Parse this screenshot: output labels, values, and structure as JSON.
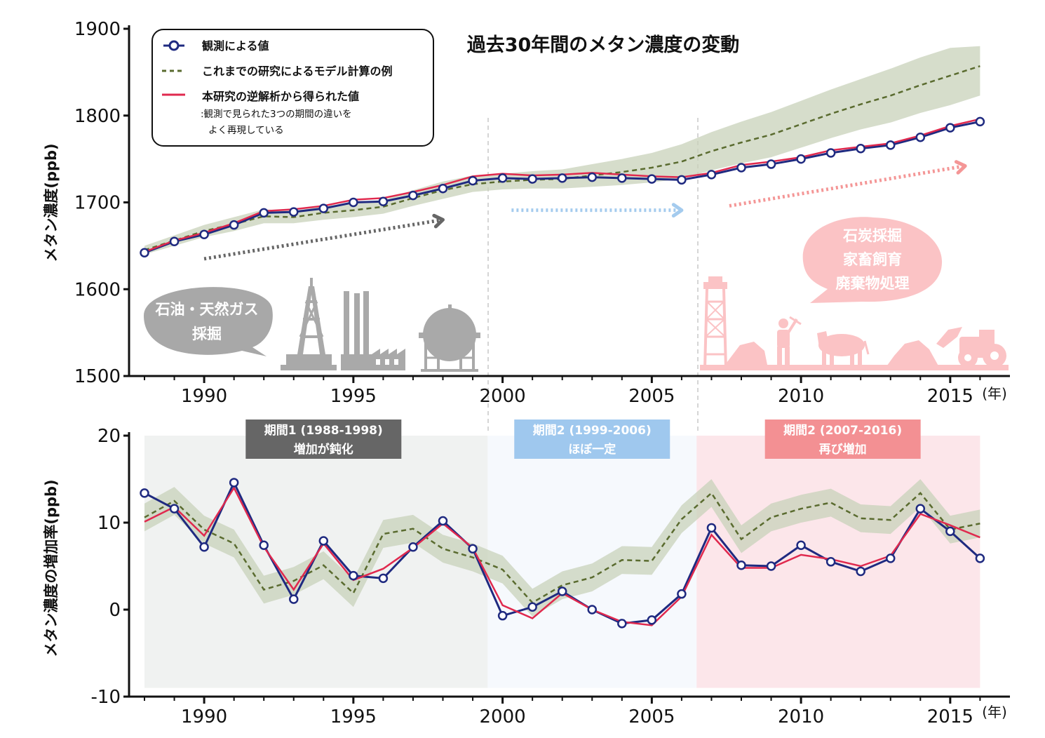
{
  "chart_data": [
    {
      "type": "line",
      "title": "過去30年間のメタン濃度の変動",
      "ylabel": "メタン濃度(ppb)",
      "xlabel": "(年)",
      "xlim": [
        1988,
        2016
      ],
      "ylim": [
        1500,
        1900
      ],
      "yticks": [
        1500,
        1600,
        1700,
        1800,
        1900
      ],
      "xticks": [
        1990,
        1995,
        2000,
        2005,
        2010,
        2015
      ],
      "legend": {
        "position": "top-left",
        "entries": [
          {
            "label": "観測による値",
            "style": "line-marker",
            "color": "#1f2a80"
          },
          {
            "label": "これまでの研究によるモデル計算の例",
            "style": "dashed",
            "color": "#5a6b2f"
          },
          {
            "label": "本研究の逆解析から得られた値",
            "style": "line",
            "color": "#e0294e"
          }
        ],
        "note": [
          ":観測で見られた3つの期間の違いを",
          "よく再現している"
        ]
      },
      "x": [
        1988,
        1989,
        1990,
        1991,
        1992,
        1993,
        1994,
        1995,
        1996,
        1997,
        1998,
        1999,
        2000,
        2001,
        2002,
        2003,
        2004,
        2005,
        2006,
        2007,
        2008,
        2009,
        2010,
        2011,
        2012,
        2013,
        2014,
        2015,
        2016
      ],
      "series": [
        {
          "name": "観測による値",
          "color": "#1f2a80",
          "values": [
            1642,
            1655,
            1663,
            1674,
            1688,
            1689,
            1693,
            1700,
            1701,
            1708,
            1716,
            1725,
            1728,
            1727,
            1728,
            1729,
            1728,
            1727,
            1726,
            1732,
            1740,
            1744,
            1750,
            1757,
            1762,
            1766,
            1775,
            1786,
            1793
          ]
        },
        {
          "name": "これまでの研究によるモデル計算の例",
          "color": "#5a6b2f",
          "values": [
            1645,
            1656,
            1667,
            1675,
            1684,
            1683,
            1688,
            1691,
            1695,
            1705,
            1714,
            1721,
            1724,
            1726,
            1727,
            1731,
            1735,
            1740,
            1747,
            1759,
            1769,
            1778,
            1790,
            1802,
            1813,
            1823,
            1835,
            1846,
            1857
          ],
          "band_low": [
            1640,
            1650,
            1660,
            1667,
            1676,
            1676,
            1680,
            1683,
            1687,
            1696,
            1704,
            1712,
            1715,
            1716,
            1716,
            1718,
            1720,
            1723,
            1727,
            1737,
            1745,
            1752,
            1763,
            1774,
            1784,
            1792,
            1803,
            1812,
            1823
          ],
          "band_high": [
            1650,
            1662,
            1674,
            1683,
            1692,
            1690,
            1696,
            1699,
            1703,
            1714,
            1724,
            1731,
            1733,
            1736,
            1738,
            1744,
            1750,
            1757,
            1767,
            1781,
            1793,
            1804,
            1817,
            1830,
            1842,
            1854,
            1867,
            1878,
            1880
          ]
        },
        {
          "name": "本研究の逆解析から得られた値",
          "color": "#e0294e",
          "values": [
            1643,
            1656,
            1665,
            1676,
            1690,
            1692,
            1696,
            1703,
            1705,
            1712,
            1720,
            1730,
            1733,
            1731,
            1732,
            1734,
            1732,
            1730,
            1729,
            1734,
            1743,
            1747,
            1752,
            1760,
            1764,
            1768,
            1777,
            1788,
            1796
          ]
        }
      ],
      "arrows": [
        {
          "from": [
            1990,
            1635
          ],
          "to": [
            1998,
            1680
          ],
          "color": "#666666"
        },
        {
          "from": [
            2000.3,
            1691
          ],
          "to": [
            2006,
            1691
          ],
          "color": "#a4cbee"
        },
        {
          "from": [
            2007.6,
            1696
          ],
          "to": [
            2015.5,
            1742
          ],
          "color": "#f49696"
        }
      ],
      "bubbles": {
        "left": [
          "石油・天然ガス",
          "採掘"
        ],
        "right": [
          "石炭採掘",
          "家畜飼育",
          "廃棄物処理"
        ]
      }
    },
    {
      "type": "line",
      "ylabel": "メタン濃度の増加率(ppb)",
      "xlabel": "(年)",
      "xlim": [
        1988,
        2016
      ],
      "ylim": [
        -10,
        20
      ],
      "yticks": [
        -10,
        0,
        10,
        20
      ],
      "xticks": [
        1990,
        1995,
        2000,
        2005,
        2010,
        2015
      ],
      "periods": [
        {
          "label": "期間1 (1988-1998)",
          "sub": "増加が鈍化",
          "start": 1988,
          "end": 1999.5,
          "fill": "#f0f2f1",
          "label_color": "#666666"
        },
        {
          "label": "期間2 (1999-2006)",
          "sub": "ほぼ一定",
          "start": 1999.5,
          "end": 2006.5,
          "fill": "#f6f9fd",
          "label_color": "#9fc8ee"
        },
        {
          "label": "期間2 (2007-2016)",
          "sub": "再び増加",
          "start": 2006.5,
          "end": 2016,
          "fill": "#fce6ea",
          "label_color": "#f39093"
        }
      ],
      "x": [
        1988,
        1989,
        1990,
        1991,
        1992,
        1993,
        1994,
        1995,
        1996,
        1997,
        1998,
        1999,
        2000,
        2001,
        2002,
        2003,
        2004,
        2005,
        2006,
        2007,
        2008,
        2009,
        2010,
        2011,
        2012,
        2013,
        2014,
        2015,
        2016
      ],
      "series": [
        {
          "name": "観測による値",
          "color": "#1f2a80",
          "values": [
            13.4,
            11.6,
            7.2,
            14.6,
            7.4,
            1.2,
            7.9,
            3.9,
            3.6,
            7.2,
            10.2,
            7.0,
            -0.7,
            0.3,
            2.1,
            0.0,
            -1.6,
            -1.2,
            1.8,
            9.4,
            5.1,
            5.0,
            7.4,
            5.5,
            4.4,
            5.9,
            11.6,
            9.0,
            5.9
          ]
        },
        {
          "name": "これまでの研究によるモデル計算の例",
          "color": "#5a6b2f",
          "values": [
            10.6,
            12.5,
            9.2,
            7.6,
            2.3,
            3.3,
            5.1,
            1.9,
            8.7,
            9.3,
            7.0,
            6.0,
            4.6,
            0.8,
            2.8,
            3.7,
            5.7,
            5.6,
            10.4,
            13.4,
            8.1,
            10.6,
            11.6,
            12.3,
            10.5,
            10.3,
            13.4,
            9.2,
            9.9
          ],
          "band_low": [
            9.0,
            10.9,
            7.6,
            6.0,
            0.7,
            1.7,
            3.5,
            0.3,
            7.1,
            7.7,
            5.4,
            4.4,
            3.0,
            -0.8,
            1.2,
            2.1,
            4.1,
            4.0,
            8.8,
            11.8,
            6.5,
            9.0,
            10.0,
            10.7,
            8.9,
            8.7,
            11.8,
            7.6,
            8.3
          ],
          "band_high": [
            12.2,
            14.1,
            10.8,
            9.2,
            3.9,
            4.9,
            6.7,
            3.5,
            10.3,
            10.9,
            8.6,
            7.6,
            6.2,
            2.4,
            4.4,
            5.3,
            7.3,
            7.2,
            12.0,
            15.0,
            9.7,
            12.2,
            13.2,
            13.9,
            12.1,
            11.9,
            15.0,
            10.8,
            11.5
          ]
        },
        {
          "name": "本研究の逆解析から得られた値",
          "color": "#e0294e",
          "values": [
            10.1,
            11.8,
            8.5,
            14.0,
            7.2,
            2.3,
            7.6,
            3.4,
            4.7,
            7.1,
            9.9,
            7.1,
            0.5,
            -1.0,
            1.9,
            0.0,
            -1.4,
            -1.8,
            1.5,
            8.6,
            4.8,
            4.8,
            6.3,
            5.8,
            5.0,
            6.2,
            11.0,
            9.7,
            8.3
          ]
        }
      ]
    }
  ]
}
